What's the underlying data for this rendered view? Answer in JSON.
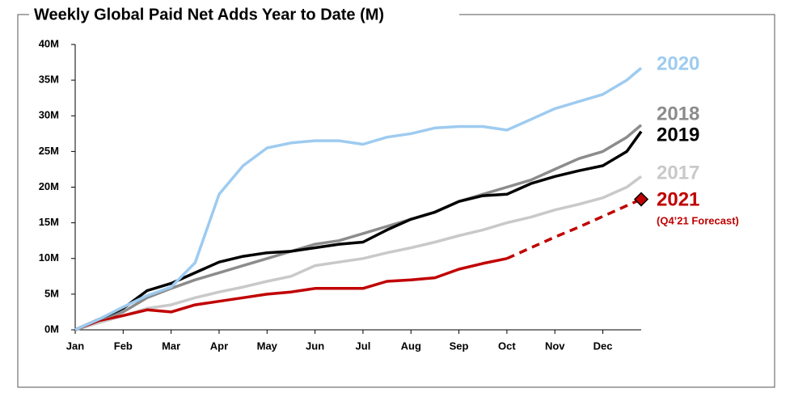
{
  "chart_data": {
    "type": "line",
    "title": "Weekly Global Paid Net Adds Year to Date (M)",
    "x": [
      0,
      0.5,
      1,
      1.5,
      2,
      2.5,
      3,
      3.5,
      4,
      4.5,
      5,
      5.5,
      6,
      6.5,
      7,
      7.5,
      8,
      8.5,
      9,
      9.5,
      10,
      10.5,
      11,
      11.5,
      11.8
    ],
    "xlim": [
      0,
      11.8
    ],
    "xticks": [
      {
        "value": 0,
        "label": "Jan"
      },
      {
        "value": 1,
        "label": "Feb"
      },
      {
        "value": 2,
        "label": "Mar"
      },
      {
        "value": 3,
        "label": "Apr"
      },
      {
        "value": 4,
        "label": "May"
      },
      {
        "value": 5,
        "label": "Jun"
      },
      {
        "value": 6,
        "label": "Jul"
      },
      {
        "value": 7,
        "label": "Aug"
      },
      {
        "value": 8,
        "label": "Sep"
      },
      {
        "value": 9,
        "label": "Oct"
      },
      {
        "value": 10,
        "label": "Nov"
      },
      {
        "value": 11,
        "label": "Dec"
      }
    ],
    "ylim": [
      0,
      40
    ],
    "yticks": [
      {
        "value": 0,
        "label": "0M"
      },
      {
        "value": 5,
        "label": "5M"
      },
      {
        "value": 10,
        "label": "10M"
      },
      {
        "value": 15,
        "label": "15M"
      },
      {
        "value": 20,
        "label": "20M"
      },
      {
        "value": 25,
        "label": "25M"
      },
      {
        "value": 30,
        "label": "30M"
      },
      {
        "value": 35,
        "label": "35M"
      },
      {
        "value": 40,
        "label": "40M"
      }
    ],
    "grid": false,
    "series": [
      {
        "name": "2017",
        "color": "#c9c9c9",
        "values": [
          0,
          1,
          2,
          3,
          3.5,
          4.5,
          5.3,
          6,
          6.8,
          7.5,
          9,
          9.5,
          10,
          10.8,
          11.5,
          12.3,
          13.2,
          14,
          15,
          15.8,
          16.8,
          17.6,
          18.5,
          20,
          21.5
        ]
      },
      {
        "name": "2021",
        "color": "#c00000",
        "values": [
          0,
          1.3,
          2,
          2.8,
          2.5,
          3.5,
          4,
          4.5,
          5,
          5.3,
          5.8,
          5.8,
          5.8,
          6.8,
          7,
          7.3,
          8.5,
          9.3,
          10,
          null,
          null,
          null,
          null,
          null,
          null
        ]
      },
      {
        "name": "(Q4’21 Forecast)",
        "color": "#c00000",
        "dashed": true,
        "marker": "diamond",
        "values": [
          null,
          null,
          null,
          null,
          null,
          null,
          null,
          null,
          null,
          null,
          null,
          null,
          null,
          null,
          null,
          null,
          null,
          null,
          10,
          11.5,
          13,
          14.4,
          15.9,
          17.4,
          18.3
        ]
      },
      {
        "name": "2018",
        "color": "#8c8c8c",
        "values": [
          0,
          1.5,
          2.5,
          4.5,
          5.8,
          7,
          8,
          9,
          10,
          11,
          12,
          12.5,
          13.5,
          14.5,
          15.5,
          16.5,
          18,
          19,
          20,
          21,
          22.5,
          24,
          25,
          27,
          28.7
        ]
      },
      {
        "name": "2019",
        "color": "#000000",
        "values": [
          0,
          1.5,
          3,
          5.5,
          6.5,
          8,
          9.5,
          10.3,
          10.8,
          11,
          11.5,
          12,
          12.3,
          14,
          15.5,
          16.5,
          18,
          18.8,
          19,
          20.5,
          21.5,
          22.3,
          23,
          25,
          27.8
        ]
      },
      {
        "name": "2020",
        "color": "#9ecbf0",
        "values": [
          0,
          1.5,
          3.2,
          4.8,
          6,
          9.4,
          19,
          23,
          25.5,
          26.2,
          26.5,
          26.5,
          26,
          27,
          27.5,
          28.3,
          28.5,
          28.5,
          28,
          29.5,
          31,
          32,
          33,
          35,
          36.7
        ]
      }
    ]
  }
}
